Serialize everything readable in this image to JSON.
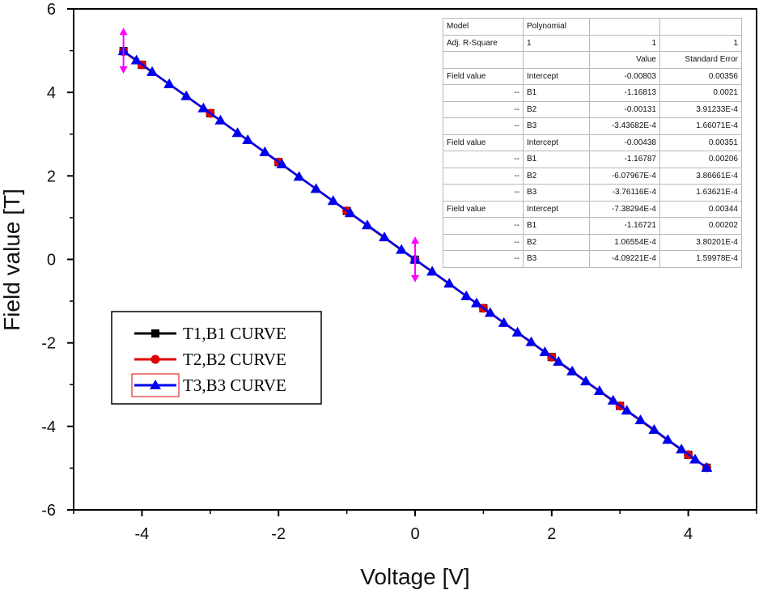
{
  "chart_data": {
    "type": "line",
    "xlabel": "Voltage [V]",
    "ylabel": "Field value [T]",
    "xlim": [
      -5,
      5
    ],
    "ylim": [
      -6,
      6
    ],
    "xticks": [
      "-4",
      "-2",
      "0",
      "2",
      "4"
    ],
    "yticks": [
      "6",
      "4",
      "2",
      "0",
      "-2",
      "-4",
      "-6"
    ],
    "grid": false,
    "legend_position": "left-middle",
    "series": [
      {
        "name": "T1,B1 CURVE",
        "color": "#000000",
        "marker": "square",
        "x": [
          -4.27,
          -4.0,
          -3.0,
          -2.0,
          -1.0,
          0.0,
          1.0,
          2.0,
          3.0,
          4.0,
          4.27
        ],
        "y": [
          4.99,
          4.66,
          3.5,
          2.33,
          1.16,
          -0.008,
          -1.17,
          -2.34,
          -3.51,
          -4.68,
          -4.99
        ]
      },
      {
        "name": "T2,B2 CURVE",
        "color": "#e00000",
        "marker": "circle",
        "x": [
          -4.27,
          -4.0,
          -3.0,
          -2.0,
          -1.0,
          0.0,
          1.0,
          2.0,
          3.0,
          4.0,
          4.27
        ],
        "y": [
          4.98,
          4.66,
          3.5,
          2.33,
          1.16,
          -0.004,
          -1.17,
          -2.34,
          -3.51,
          -4.68,
          -4.99
        ]
      },
      {
        "name": "T3,B3 CURVE",
        "color": "#0000ee",
        "marker": "triangle",
        "x": [
          -4.27,
          -4.08,
          -3.85,
          -3.6,
          -3.35,
          -3.1,
          -2.85,
          -2.6,
          -2.45,
          -2.2,
          -1.95,
          -1.7,
          -1.45,
          -1.2,
          -0.95,
          -0.7,
          -0.45,
          -0.2,
          0.0,
          0.25,
          0.5,
          0.75,
          0.9,
          1.1,
          1.3,
          1.5,
          1.7,
          1.9,
          2.1,
          2.3,
          2.5,
          2.7,
          2.9,
          3.1,
          3.3,
          3.5,
          3.7,
          3.9,
          4.1,
          4.27
        ],
        "y": [
          4.99,
          4.77,
          4.49,
          4.2,
          3.91,
          3.62,
          3.33,
          3.03,
          2.86,
          2.57,
          2.28,
          1.98,
          1.69,
          1.4,
          1.11,
          0.82,
          0.53,
          0.23,
          0.0,
          -0.29,
          -0.58,
          -0.88,
          -1.05,
          -1.28,
          -1.52,
          -1.75,
          -1.98,
          -2.22,
          -2.45,
          -2.68,
          -2.92,
          -3.15,
          -3.38,
          -3.62,
          -3.85,
          -4.08,
          -4.32,
          -4.55,
          -4.79,
          -4.99
        ]
      }
    ],
    "annotations": [
      {
        "type": "error-arrow",
        "color": "#ff00ff",
        "x": -4.27,
        "y_low": 4.45,
        "y_high": 5.55
      },
      {
        "type": "error-arrow",
        "color": "#ff00ff",
        "x": 0.0,
        "y_low": -0.55,
        "y_high": 0.55
      }
    ],
    "fit_table": {
      "header": [
        "Model",
        "Polynomial",
        "",
        ""
      ],
      "rows": [
        [
          "Adj. R-Square",
          "1",
          "1",
          "1"
        ],
        [
          "",
          "",
          "Value",
          "Standard Error"
        ],
        [
          "Field value",
          "Intercept",
          "-0.00803",
          "0.00356"
        ],
        [
          "--",
          "B1",
          "-1.16813",
          "0.0021"
        ],
        [
          "--",
          "B2",
          "-0.00131",
          "3.91233E-4"
        ],
        [
          "--",
          "B3",
          "-3.43682E-4",
          "1.66071E-4"
        ],
        [
          "Field value",
          "Intercept",
          "-0.00438",
          "0.00351"
        ],
        [
          "--",
          "B1",
          "-1.16787",
          "0.00206"
        ],
        [
          "--",
          "B2",
          "-6.07967E-4",
          "3.86661E-4"
        ],
        [
          "--",
          "B3",
          "-3.76116E-4",
          "1.63621E-4"
        ],
        [
          "Field value",
          "Intercept",
          "-7.38294E-4",
          "0.00344"
        ],
        [
          "--",
          "B1",
          "-1.16721",
          "0.00202"
        ],
        [
          "--",
          "B2",
          "1.06554E-4",
          "3.80201E-4"
        ],
        [
          "--",
          "B3",
          "-4.09221E-4",
          "1.59978E-4"
        ]
      ]
    }
  }
}
